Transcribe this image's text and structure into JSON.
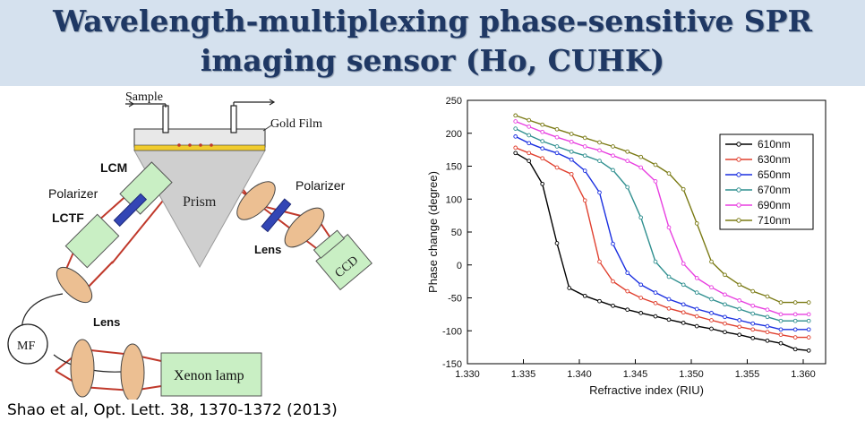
{
  "title": {
    "line1": "Wavelength-multiplexing phase-sensitive SPR",
    "line2": "imaging sensor (Ho, CUHK)"
  },
  "citation": "Shao et al, Opt. Lett. 38, 1370-1372 (2013)",
  "diagram": {
    "labels": {
      "sample": "Sample",
      "gold_film": "Gold Film",
      "lcm": "LCM",
      "polarizer_left": "Polarizer",
      "polarizer_right": "Polarizer",
      "lctf": "LCTF",
      "prism": "Prism",
      "lens_right": "Lens",
      "ccd": "CCD",
      "lens_bottom": "Lens",
      "mf": "MF",
      "xenon_lamp": "Xenon lamp"
    },
    "colors": {
      "beam": "#c0392b",
      "component_fill": "#c9efc4",
      "lens_fill": "#ecbf92",
      "polarizer_fill": "#3346b5",
      "prism_fill": "#cfcfcf",
      "gold_film": "#f1cc2e"
    }
  },
  "chart_data": {
    "type": "line",
    "title": "",
    "xlabel": "Refractive index (RIU)",
    "ylabel": "Phase change (degree)",
    "xlim": [
      1.33,
      1.362
    ],
    "ylim": [
      -150,
      250
    ],
    "xticks": [
      "1.330",
      "1.335",
      "1.340",
      "1.345",
      "1.350",
      "1.355",
      "1.360"
    ],
    "yticks": [
      "-150",
      "-100",
      "-50",
      "0",
      "50",
      "100",
      "150",
      "200",
      "250"
    ],
    "legend_position": "top-right",
    "grid": false,
    "series": [
      {
        "name": "610nm",
        "color": "#000000",
        "x": [
          1.3343,
          1.3355,
          1.3367,
          1.338,
          1.3391,
          1.3405,
          1.3418,
          1.343,
          1.3443,
          1.3455,
          1.3468,
          1.348,
          1.3493,
          1.3505,
          1.3518,
          1.353,
          1.3543,
          1.3555,
          1.3568,
          1.358,
          1.3593,
          1.3605
        ],
        "y": [
          170,
          158,
          123,
          33,
          -35,
          -47,
          -55,
          -62,
          -68,
          -73,
          -78,
          -83,
          -88,
          -93,
          -97,
          -102,
          -106,
          -111,
          -115,
          -119,
          -128,
          -130
        ]
      },
      {
        "name": "630nm",
        "color": "#e0402f",
        "x": [
          1.3343,
          1.3355,
          1.3367,
          1.338,
          1.3393,
          1.3405,
          1.3418,
          1.343,
          1.3443,
          1.3455,
          1.3468,
          1.348,
          1.3493,
          1.3505,
          1.3518,
          1.353,
          1.3543,
          1.3555,
          1.3568,
          1.358,
          1.3593,
          1.3605
        ],
        "y": [
          178,
          170,
          162,
          148,
          138,
          98,
          5,
          -25,
          -40,
          -50,
          -58,
          -66,
          -72,
          -78,
          -84,
          -89,
          -94,
          -98,
          -102,
          -106,
          -110,
          -110
        ]
      },
      {
        "name": "650nm",
        "color": "#1a2fe0",
        "x": [
          1.3343,
          1.3355,
          1.3367,
          1.338,
          1.3393,
          1.3405,
          1.3418,
          1.343,
          1.3443,
          1.3455,
          1.3468,
          1.348,
          1.3493,
          1.3505,
          1.3518,
          1.353,
          1.3543,
          1.3555,
          1.3568,
          1.358,
          1.3593,
          1.3605
        ],
        "y": [
          195,
          185,
          177,
          170,
          160,
          143,
          110,
          32,
          -12,
          -30,
          -42,
          -52,
          -60,
          -67,
          -73,
          -79,
          -84,
          -89,
          -93,
          -98,
          -98,
          -98
        ]
      },
      {
        "name": "670nm",
        "color": "#2f8f8f",
        "x": [
          1.3343,
          1.3355,
          1.3367,
          1.338,
          1.3393,
          1.3405,
          1.3418,
          1.343,
          1.3443,
          1.3455,
          1.3468,
          1.348,
          1.3493,
          1.3505,
          1.3518,
          1.353,
          1.3543,
          1.3555,
          1.3568,
          1.358,
          1.3593,
          1.3605
        ],
        "y": [
          207,
          197,
          188,
          180,
          172,
          166,
          158,
          144,
          118,
          72,
          5,
          -18,
          -30,
          -42,
          -52,
          -60,
          -67,
          -74,
          -79,
          -85,
          -85,
          -85
        ]
      },
      {
        "name": "690nm",
        "color": "#e83fe0",
        "x": [
          1.3343,
          1.3355,
          1.3367,
          1.338,
          1.3393,
          1.3405,
          1.3418,
          1.343,
          1.3443,
          1.3455,
          1.3468,
          1.348,
          1.3493,
          1.3505,
          1.3518,
          1.353,
          1.3543,
          1.3555,
          1.3568,
          1.358,
          1.3593,
          1.3605
        ],
        "y": [
          218,
          210,
          202,
          194,
          187,
          180,
          174,
          166,
          158,
          148,
          127,
          57,
          2,
          -20,
          -34,
          -45,
          -54,
          -62,
          -68,
          -75,
          -75,
          -75
        ]
      },
      {
        "name": "710nm",
        "color": "#7a7a14",
        "x": [
          1.3343,
          1.3355,
          1.3367,
          1.338,
          1.3393,
          1.3405,
          1.3418,
          1.343,
          1.3443,
          1.3455,
          1.3468,
          1.348,
          1.3493,
          1.3505,
          1.3518,
          1.353,
          1.3543,
          1.3555,
          1.3568,
          1.358,
          1.3593,
          1.3605
        ],
        "y": [
          227,
          220,
          213,
          206,
          199,
          193,
          186,
          180,
          172,
          164,
          152,
          139,
          115,
          63,
          5,
          -15,
          -30,
          -40,
          -48,
          -57,
          -57,
          -57
        ]
      }
    ]
  }
}
